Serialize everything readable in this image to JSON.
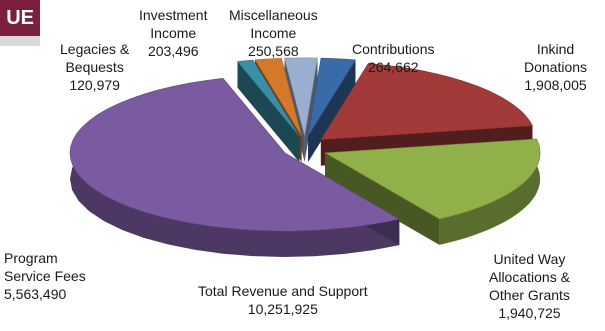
{
  "header": {
    "tab_text": "UE"
  },
  "chart_data": {
    "type": "pie",
    "title": "",
    "total": {
      "label": "Total Revenue and Support",
      "value": "10,251,925"
    },
    "slices": [
      {
        "label_lines": [
          "Contributions"
        ],
        "value_text": "264,662",
        "value": 264662,
        "color": "#3b6aa8",
        "exploded": true
      },
      {
        "label_lines": [
          "Inkind",
          "Donations"
        ],
        "value_text": "1,908,005",
        "value": 1908005,
        "color": "#a33a3a",
        "exploded": true
      },
      {
        "label_lines": [
          "United Way",
          "Allocations &",
          "Other Grants"
        ],
        "value_text": "1,940,725",
        "value": 1940725,
        "color": "#90b04a",
        "exploded": true
      },
      {
        "label_lines": [
          "Program",
          "Service Fees"
        ],
        "value_text": "5,563,490",
        "value": 5563490,
        "color": "#7a5aa0",
        "exploded": true
      },
      {
        "label_lines": [
          "Legacies &",
          "Bequests"
        ],
        "value_text": "120,979",
        "value": 120979,
        "color": "#3a8fa6",
        "exploded": true
      },
      {
        "label_lines": [
          "Investment",
          "Income"
        ],
        "value_text": "203,496",
        "value": 203496,
        "color": "#d4792c",
        "exploded": true
      },
      {
        "label_lines": [
          "Miscellaneous",
          "Income"
        ],
        "value_text": "250,568",
        "value": 250568,
        "color": "#9aaed0",
        "exploded": true
      }
    ]
  }
}
